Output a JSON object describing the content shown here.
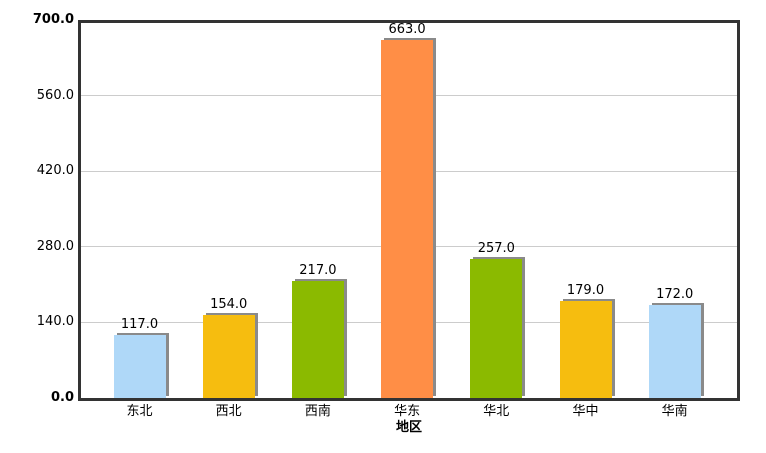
{
  "chart_data": {
    "type": "bar",
    "title": "",
    "xlabel": "地区",
    "ylabel": "",
    "categories": [
      "东北",
      "西北",
      "西南",
      "华东",
      "华北",
      "华中",
      "华南"
    ],
    "values": [
      117,
      154,
      217,
      663,
      257,
      179,
      172
    ],
    "value_labels": [
      "117.0",
      "154.0",
      "217.0",
      "663.0",
      "257.0",
      "179.0",
      "172.0"
    ],
    "bar_colors": [
      "#AFD8F8",
      "#F6BD0F",
      "#8BBA00",
      "#FF8E46",
      "#8BBA00",
      "#F6BD0F",
      "#AFD8F8"
    ],
    "ylim": [
      0,
      700
    ],
    "yticks": [
      0,
      140,
      280,
      420,
      560,
      700
    ],
    "ytick_labels": [
      "0.0",
      "140.0",
      "280.0",
      "420.0",
      "560.0",
      "700.0"
    ],
    "grid": true,
    "legend": "none",
    "colors": {
      "axis": "#333333",
      "gridline": "#cccccc",
      "bar_shadow": "#8a8a8a",
      "text": "#000000",
      "background": "#ffffff"
    }
  }
}
